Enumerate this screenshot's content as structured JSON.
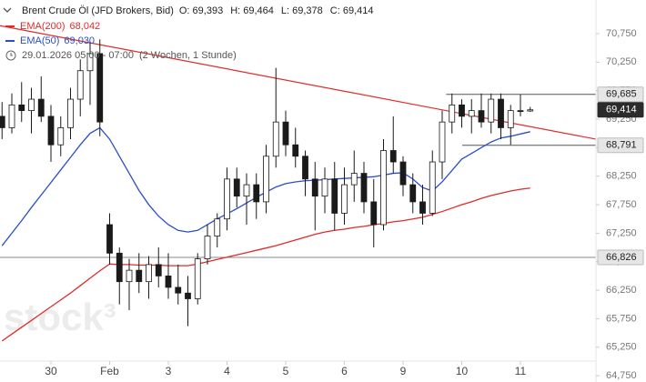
{
  "header": {
    "title": "Brent Crude Öl (JFD Brokers, Bid)",
    "ohlc": [
      "O: 69,393",
      "H: 69,464",
      "L: 69,378",
      "C: 69,414"
    ],
    "period": "29.01.2026 05:00 - 07:00",
    "span": "(2 Wochen, 1 Stunde)"
  },
  "watermark": "stock³",
  "chart_data": {
    "type": "candlestick",
    "categories": [
      null,
      null,
      null,
      null,
      null,
      "30",
      null,
      null,
      null,
      null,
      null,
      "Feb",
      null,
      null,
      null,
      null,
      null,
      "3",
      null,
      null,
      null,
      null,
      null,
      "4",
      null,
      null,
      null,
      null,
      null,
      "5",
      null,
      null,
      null,
      null,
      null,
      "6",
      null,
      null,
      null,
      null,
      null,
      "9",
      null,
      null,
      null,
      null,
      null,
      "10",
      null,
      null,
      null,
      null,
      null,
      "11",
      null
    ],
    "open": [
      69.3,
      69.1,
      69.5,
      69.4,
      69.6,
      69.3,
      68.8,
      69.1,
      69.6,
      70.1,
      70.4,
      67.4,
      66.9,
      66.4,
      66.6,
      66.4,
      66.7,
      66.5,
      66.3,
      66.2,
      66.1,
      66.8,
      67.2,
      67.5,
      68.2,
      67.9,
      68.1,
      67.8,
      68.6,
      69.2,
      68.8,
      68.6,
      68.2,
      67.9,
      68.2,
      67.6,
      68.1,
      68.3,
      67.8,
      67.4,
      68.7,
      68.5,
      68.1,
      67.8,
      67.6,
      68.5,
      69.2,
      69.5,
      69.3,
      69.4,
      69.2,
      69.6,
      69.1,
      69.4,
      69.393
    ],
    "high": [
      69.55,
      69.7,
      69.9,
      69.8,
      70.0,
      69.5,
      69.3,
      69.8,
      70.3,
      70.6,
      70.65,
      67.6,
      67.0,
      66.8,
      66.9,
      66.85,
      67.0,
      66.9,
      66.7,
      66.5,
      66.9,
      67.4,
      67.6,
      68.4,
      68.4,
      68.3,
      68.3,
      68.8,
      70.15,
      69.4,
      69.1,
      68.7,
      68.5,
      68.4,
      68.5,
      68.4,
      68.7,
      68.5,
      68.2,
      68.9,
      69.3,
      68.6,
      68.3,
      68.1,
      68.7,
      69.4,
      69.7,
      69.6,
      69.6,
      69.7,
      69.7,
      69.7,
      69.5,
      69.68,
      69.464
    ],
    "low": [
      68.9,
      69.0,
      69.2,
      69.0,
      69.2,
      68.5,
      68.6,
      68.9,
      69.3,
      69.5,
      68.95,
      66.7,
      66.0,
      65.9,
      66.2,
      66.1,
      66.3,
      66.1,
      66.0,
      65.62,
      66.0,
      66.7,
      67.0,
      67.3,
      67.7,
      67.4,
      67.5,
      67.6,
      68.4,
      68.6,
      68.4,
      67.9,
      67.3,
      67.6,
      67.3,
      67.4,
      67.8,
      67.6,
      67.0,
      67.3,
      68.3,
      67.9,
      67.6,
      67.4,
      67.55,
      68.2,
      69.0,
      69.1,
      69.0,
      69.1,
      69.0,
      68.9,
      68.8,
      69.3,
      69.378
    ],
    "close": [
      69.1,
      69.5,
      69.4,
      69.6,
      69.3,
      68.8,
      69.1,
      69.6,
      70.1,
      70.4,
      69.2,
      66.9,
      66.4,
      66.6,
      66.4,
      66.7,
      66.5,
      66.3,
      66.2,
      66.1,
      66.8,
      67.2,
      67.5,
      68.2,
      67.9,
      68.1,
      67.8,
      68.6,
      69.2,
      68.8,
      68.6,
      68.2,
      67.9,
      68.2,
      67.6,
      68.1,
      68.3,
      67.8,
      67.4,
      68.7,
      68.5,
      68.1,
      67.8,
      67.6,
      68.5,
      69.2,
      69.5,
      69.3,
      69.4,
      69.2,
      69.6,
      69.1,
      69.4,
      69.393,
      69.414
    ],
    "up_color": "#ffffff",
    "down_color": "#1a1a1a",
    "wick_color": "#1a1a1a",
    "series": [
      {
        "name": "EMA(200)",
        "color": "#e02b2b",
        "value_label": "68,042",
        "values": [
          65.36,
          65.48,
          65.6,
          65.72,
          65.84,
          65.96,
          66.08,
          66.2,
          66.33,
          66.46,
          66.59,
          66.71,
          66.7,
          66.7,
          66.69,
          66.69,
          66.69,
          66.68,
          66.68,
          66.68,
          66.71,
          66.75,
          66.79,
          66.83,
          66.87,
          66.91,
          66.95,
          66.99,
          67.03,
          67.08,
          67.13,
          67.18,
          67.23,
          67.27,
          67.3,
          67.32,
          67.35,
          67.37,
          67.4,
          67.42,
          67.45,
          67.47,
          67.5,
          67.53,
          67.58,
          67.63,
          67.69,
          67.75,
          67.8,
          67.86,
          67.91,
          67.95,
          67.99,
          68.02,
          68.042
        ]
      },
      {
        "name": "EMA(50)",
        "color": "#2a4fc4",
        "value_label": "69,030",
        "values": [
          67.03,
          67.25,
          67.47,
          67.7,
          67.92,
          68.14,
          68.36,
          68.58,
          68.8,
          69.0,
          69.1,
          68.9,
          68.6,
          68.3,
          68.0,
          67.75,
          67.55,
          67.4,
          67.3,
          67.27,
          67.3,
          67.4,
          67.5,
          67.59,
          67.68,
          67.78,
          67.88,
          67.97,
          68.06,
          68.12,
          68.15,
          68.17,
          68.18,
          68.19,
          68.2,
          68.21,
          68.22,
          68.23,
          68.24,
          68.27,
          68.3,
          68.31,
          68.2,
          68.05,
          67.99,
          68.15,
          68.35,
          68.55,
          68.65,
          68.75,
          68.85,
          68.92,
          68.95,
          68.99,
          69.03
        ]
      }
    ],
    "trendline": {
      "from": {
        "x": -0.21,
        "value": 70.89
      },
      "to": {
        "x": 60.7,
        "value": 68.9
      },
      "color": "#e02b2b"
    },
    "levels": [
      {
        "value": 69.685,
        "label": "69,685",
        "from": 45.4,
        "kind": "box"
      },
      {
        "value": 69.414,
        "label": "69,414",
        "kind": "last"
      },
      {
        "value": 68.791,
        "label": "68,791",
        "from": 47.05,
        "kind": "box"
      },
      {
        "value": 66.826,
        "label": "66,826",
        "from": -0.21,
        "kind": "line"
      }
    ],
    "ylim": [
      64.64,
      71.34
    ],
    "yticks": [
      {
        "value": 70.75,
        "label": "70,750"
      },
      {
        "value": 70.25,
        "label": "70,250"
      },
      {
        "value": 69.75,
        "label": "69,750"
      },
      {
        "value": 69.25,
        "label": "69,250"
      },
      {
        "value": 68.75,
        "label": "68,750"
      },
      {
        "value": 68.25,
        "label": "68,250"
      },
      {
        "value": 67.75,
        "label": "67,750"
      },
      {
        "value": 67.25,
        "label": "67,250"
      },
      {
        "value": 66.75,
        "label": "66,750"
      },
      {
        "value": 66.25,
        "label": "66,250"
      },
      {
        "value": 65.75,
        "label": "65,750"
      },
      {
        "value": 65.25,
        "label": "65,250"
      },
      {
        "value": 64.75,
        "label": "64,750"
      }
    ],
    "grid": false
  }
}
